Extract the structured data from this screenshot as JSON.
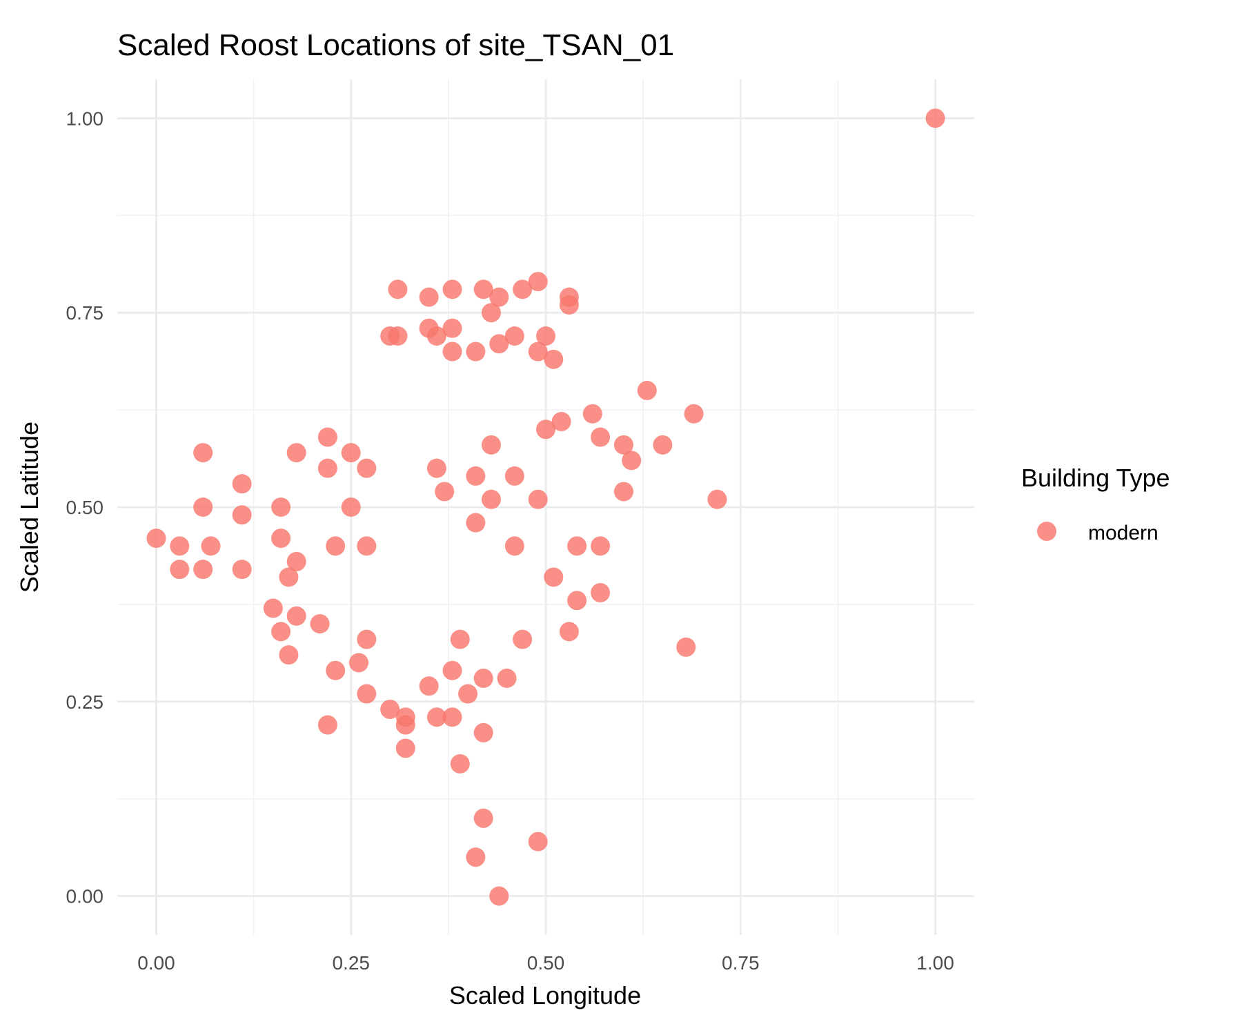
{
  "chart_data": {
    "type": "scatter",
    "title": "Scaled Roost Locations of site_TSAN_01",
    "xlabel": "Scaled Longitude",
    "ylabel": "Scaled Latitude",
    "xlim": [
      -0.05,
      1.05
    ],
    "ylim": [
      -0.05,
      1.05
    ],
    "x_ticks": [
      0,
      0.25,
      0.5,
      0.75,
      1
    ],
    "x_tick_labels": [
      "0.00",
      "0.25",
      "0.50",
      "0.75",
      "1.00"
    ],
    "y_ticks": [
      0,
      0.25,
      0.5,
      0.75,
      1
    ],
    "y_tick_labels": [
      "0.00",
      "0.25",
      "0.50",
      "0.75",
      "1.00"
    ],
    "grid": true,
    "legend": {
      "title": "Building Type",
      "position": "right"
    },
    "series": [
      {
        "name": "modern",
        "color": "#F8766D",
        "points": [
          [
            0.0,
            0.46
          ],
          [
            0.03,
            0.45
          ],
          [
            0.03,
            0.42
          ],
          [
            0.06,
            0.57
          ],
          [
            0.06,
            0.5
          ],
          [
            0.06,
            0.42
          ],
          [
            0.07,
            0.45
          ],
          [
            0.11,
            0.53
          ],
          [
            0.11,
            0.49
          ],
          [
            0.11,
            0.42
          ],
          [
            0.15,
            0.37
          ],
          [
            0.16,
            0.34
          ],
          [
            0.16,
            0.5
          ],
          [
            0.16,
            0.46
          ],
          [
            0.17,
            0.41
          ],
          [
            0.17,
            0.31
          ],
          [
            0.18,
            0.57
          ],
          [
            0.18,
            0.43
          ],
          [
            0.18,
            0.36
          ],
          [
            0.21,
            0.35
          ],
          [
            0.22,
            0.59
          ],
          [
            0.22,
            0.55
          ],
          [
            0.22,
            0.22
          ],
          [
            0.23,
            0.45
          ],
          [
            0.23,
            0.29
          ],
          [
            0.25,
            0.5
          ],
          [
            0.25,
            0.57
          ],
          [
            0.26,
            0.3
          ],
          [
            0.27,
            0.26
          ],
          [
            0.27,
            0.55
          ],
          [
            0.27,
            0.45
          ],
          [
            0.27,
            0.33
          ],
          [
            0.3,
            0.72
          ],
          [
            0.3,
            0.24
          ],
          [
            0.31,
            0.78
          ],
          [
            0.31,
            0.72
          ],
          [
            0.32,
            0.22
          ],
          [
            0.32,
            0.19
          ],
          [
            0.32,
            0.23
          ],
          [
            0.35,
            0.73
          ],
          [
            0.35,
            0.77
          ],
          [
            0.35,
            0.27
          ],
          [
            0.36,
            0.23
          ],
          [
            0.36,
            0.55
          ],
          [
            0.36,
            0.72
          ],
          [
            0.37,
            0.52
          ],
          [
            0.38,
            0.78
          ],
          [
            0.38,
            0.73
          ],
          [
            0.38,
            0.7
          ],
          [
            0.38,
            0.29
          ],
          [
            0.38,
            0.23
          ],
          [
            0.39,
            0.33
          ],
          [
            0.39,
            0.17
          ],
          [
            0.4,
            0.26
          ],
          [
            0.41,
            0.48
          ],
          [
            0.41,
            0.54
          ],
          [
            0.41,
            0.7
          ],
          [
            0.41,
            0.05
          ],
          [
            0.42,
            0.78
          ],
          [
            0.42,
            0.28
          ],
          [
            0.42,
            0.21
          ],
          [
            0.42,
            0.1
          ],
          [
            0.43,
            0.75
          ],
          [
            0.43,
            0.58
          ],
          [
            0.43,
            0.51
          ],
          [
            0.44,
            0.77
          ],
          [
            0.44,
            0.71
          ],
          [
            0.44,
            0.0
          ],
          [
            0.45,
            0.28
          ],
          [
            0.46,
            0.54
          ],
          [
            0.46,
            0.45
          ],
          [
            0.46,
            0.72
          ],
          [
            0.47,
            0.78
          ],
          [
            0.47,
            0.33
          ],
          [
            0.49,
            0.79
          ],
          [
            0.49,
            0.7
          ],
          [
            0.49,
            0.51
          ],
          [
            0.49,
            0.07
          ],
          [
            0.5,
            0.72
          ],
          [
            0.5,
            0.6
          ],
          [
            0.51,
            0.41
          ],
          [
            0.51,
            0.69
          ],
          [
            0.52,
            0.61
          ],
          [
            0.53,
            0.77
          ],
          [
            0.53,
            0.76
          ],
          [
            0.53,
            0.34
          ],
          [
            0.54,
            0.45
          ],
          [
            0.54,
            0.38
          ],
          [
            0.56,
            0.62
          ],
          [
            0.57,
            0.45
          ],
          [
            0.57,
            0.39
          ],
          [
            0.57,
            0.59
          ],
          [
            0.6,
            0.58
          ],
          [
            0.6,
            0.52
          ],
          [
            0.61,
            0.56
          ],
          [
            0.63,
            0.65
          ],
          [
            0.65,
            0.58
          ],
          [
            0.68,
            0.32
          ],
          [
            0.69,
            0.62
          ],
          [
            0.72,
            0.51
          ],
          [
            1.0,
            1.0
          ]
        ]
      }
    ]
  }
}
